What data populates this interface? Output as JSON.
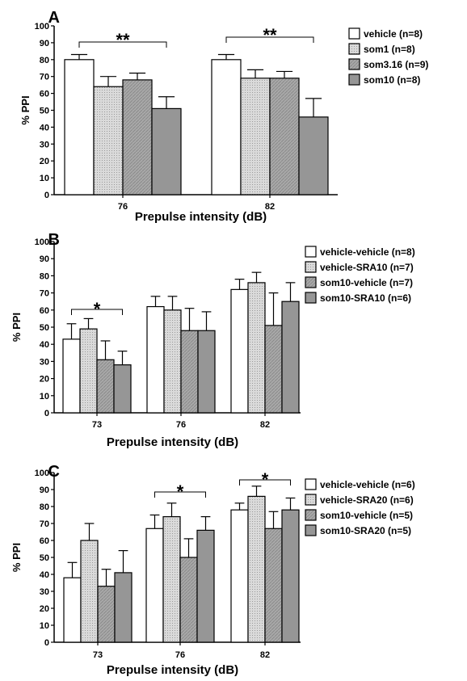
{
  "chart_data": [
    {
      "type": "bar",
      "panel_label": "A",
      "categories": [
        "76",
        "82"
      ],
      "series": [
        {
          "name": "vehicle (n=8)",
          "values": [
            80,
            80
          ],
          "errors": [
            3,
            3
          ]
        },
        {
          "name": "som1 (n=8)",
          "values": [
            64,
            69
          ],
          "errors": [
            6,
            5
          ]
        },
        {
          "name": "som3.16 (n=9)",
          "values": [
            68,
            69
          ],
          "errors": [
            4,
            4
          ]
        },
        {
          "name": "som10 (n=8)",
          "values": [
            51,
            46
          ],
          "errors": [
            7,
            11
          ]
        }
      ],
      "xlabel": "Prepulse intensity (dB)",
      "ylabel": "% PPI",
      "ylim": [
        0,
        100
      ],
      "yticks": [
        0,
        10,
        20,
        30,
        40,
        50,
        60,
        70,
        80,
        90,
        100
      ],
      "legend": "right",
      "significance": [
        {
          "category": "76",
          "label": "**"
        },
        {
          "category": "82",
          "label": "**"
        }
      ],
      "colors": {
        "series": [
          "#ffffff",
          "#d4d4d4",
          "#a8a8a8",
          "#959595"
        ]
      }
    },
    {
      "type": "bar",
      "panel_label": "B",
      "categories": [
        "73",
        "76",
        "82"
      ],
      "series": [
        {
          "name": "vehicle-vehicle (n=8)",
          "values": [
            43,
            62,
            72
          ],
          "errors": [
            9,
            6,
            6
          ]
        },
        {
          "name": "vehicle-SRA10 (n=7)",
          "values": [
            49,
            60,
            76
          ],
          "errors": [
            6,
            8,
            6
          ]
        },
        {
          "name": "som10-vehicle (n=7)",
          "values": [
            31,
            48,
            51
          ],
          "errors": [
            11,
            13,
            19
          ]
        },
        {
          "name": "som10-SRA10 (n=6)",
          "values": [
            28,
            48,
            65
          ],
          "errors": [
            8,
            11,
            11
          ]
        }
      ],
      "xlabel": "Prepulse intensity (dB)",
      "ylabel": "% PPI",
      "ylim": [
        0,
        100
      ],
      "yticks": [
        0,
        10,
        20,
        30,
        40,
        50,
        60,
        70,
        80,
        90,
        100
      ],
      "legend": "right",
      "significance": [
        {
          "category": "73",
          "label": "*"
        }
      ],
      "colors": {
        "series": [
          "#ffffff",
          "#d4d4d4",
          "#a8a8a8",
          "#959595"
        ]
      }
    },
    {
      "type": "bar",
      "panel_label": "C",
      "categories": [
        "73",
        "76",
        "82"
      ],
      "series": [
        {
          "name": "vehicle-vehicle (n=6)",
          "values": [
            38,
            67,
            78
          ],
          "errors": [
            9,
            8,
            4
          ]
        },
        {
          "name": "vehicle-SRA20 (n=6)",
          "values": [
            60,
            74,
            86
          ],
          "errors": [
            10,
            8,
            6
          ]
        },
        {
          "name": "som10-vehicle (n=5)",
          "values": [
            33,
            50,
            67
          ],
          "errors": [
            10,
            11,
            10
          ]
        },
        {
          "name": "som10-SRA20 (n=5)",
          "values": [
            41,
            66,
            78
          ],
          "errors": [
            13,
            8,
            7
          ]
        }
      ],
      "xlabel": "Prepulse intensity (dB)",
      "ylabel": "% PPI",
      "ylim": [
        0,
        100
      ],
      "yticks": [
        0,
        10,
        20,
        30,
        40,
        50,
        60,
        70,
        80,
        90,
        100
      ],
      "legend": "right",
      "significance": [
        {
          "category": "76",
          "label": "*"
        },
        {
          "category": "82",
          "label": "*"
        }
      ],
      "colors": {
        "series": [
          "#ffffff",
          "#d4d4d4",
          "#a8a8a8",
          "#959595"
        ]
      }
    }
  ]
}
